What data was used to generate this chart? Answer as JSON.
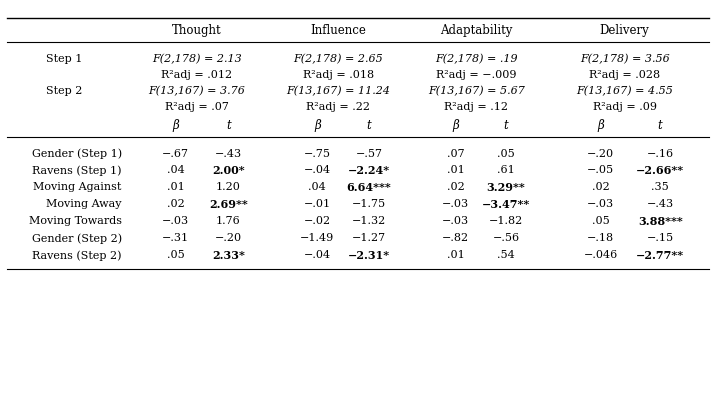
{
  "group_labels": [
    "Thought",
    "Influence",
    "Adaptability",
    "Delivery"
  ],
  "step1_f": [
    "F(2,178) = 2.13",
    "F(2,178) = 2.65",
    "F(2,178) = .19",
    "F(2,178) = 3.56"
  ],
  "step1_r2": [
    "R²adj = .012",
    "R²adj = .018",
    "R²adj = −.009",
    "R²adj = .028"
  ],
  "step2_f": [
    "F(13,167) = 3.76",
    "F(13,167) = 11.24",
    "F(13,167) = 5.67",
    "F(13,167) = 4.55"
  ],
  "step2_r2": [
    "R²adj = .07",
    "R²adj = .22",
    "R²adj = .12",
    "R²adj = .09"
  ],
  "rows": [
    {
      "label": "Gender (Step 1)",
      "values": [
        "−.67",
        "−.43",
        "−.75",
        "−.57",
        ".07",
        ".05",
        "−.20",
        "−.16"
      ],
      "bold": [
        false,
        false,
        false,
        false,
        false,
        false,
        false,
        false
      ]
    },
    {
      "label": "Ravens (Step 1)",
      "values": [
        ".04",
        "2.00*",
        "−.04",
        "−2.24*",
        ".01",
        ".61",
        "−.05",
        "−2.66**"
      ],
      "bold": [
        false,
        true,
        false,
        true,
        false,
        false,
        false,
        true
      ]
    },
    {
      "label": "Moving Against",
      "values": [
        ".01",
        "1.20",
        ".04",
        "6.64***",
        ".02",
        "3.29**",
        ".02",
        ".35"
      ],
      "bold": [
        false,
        false,
        false,
        true,
        false,
        true,
        false,
        false
      ]
    },
    {
      "label": "Moving Away",
      "values": [
        ".02",
        "2.69**",
        "−.01",
        "−1.75",
        "−.03",
        "−3.47**",
        "−.03",
        "−.43"
      ],
      "bold": [
        false,
        true,
        false,
        false,
        false,
        true,
        false,
        false
      ]
    },
    {
      "label": "Moving Towards",
      "values": [
        "−.03",
        "1.76",
        "−.02",
        "−1.32",
        "−.03",
        "−1.82",
        ".05",
        "3.88***"
      ],
      "bold": [
        false,
        false,
        false,
        false,
        false,
        false,
        false,
        true
      ]
    },
    {
      "label": "Gender (Step 2)",
      "values": [
        "−.31",
        "−.20",
        "−1.49",
        "−1.27",
        "−.82",
        "−.56",
        "−.18",
        "−.15"
      ],
      "bold": [
        false,
        false,
        false,
        false,
        false,
        false,
        false,
        false
      ]
    },
    {
      "label": "Ravens (Step 2)",
      "values": [
        ".05",
        "2.33*",
        "−.04",
        "−2.31*",
        ".01",
        ".54",
        "−.046",
        "−2.77**"
      ],
      "bold": [
        false,
        true,
        false,
        true,
        false,
        false,
        false,
        true
      ]
    }
  ],
  "font_family": "serif",
  "bg_color": "#ffffff",
  "text_color": "#000000",
  "fontsize": 8.0,
  "header_fontsize": 8.5
}
